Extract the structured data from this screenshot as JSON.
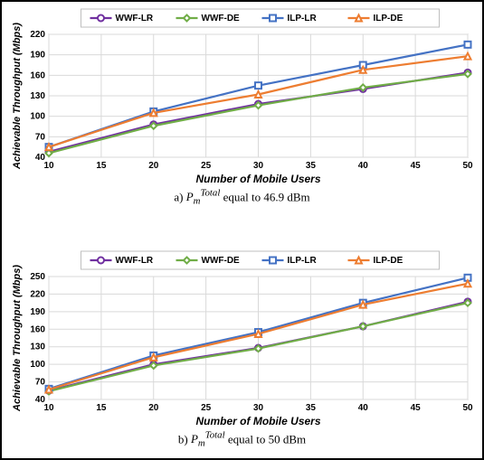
{
  "global": {
    "xlabel": "Number of Mobile Users",
    "ylabel": "Achievable Throughput (Mbps)",
    "xlim": [
      10,
      50
    ],
    "xtick_step": 5,
    "bg_plot": "#ffffff",
    "grid_color": "#d9d9d9",
    "axis_color": "#a6a6a6",
    "legend_bg": "#ffffff",
    "legend_border": "#bfbfbf",
    "xlabel_fontsize": 12,
    "ylabel_fontsize": 11,
    "ytick_fontsize": 10,
    "legend_fontsize": 10,
    "line_width": 2.2,
    "marker_size": 7
  },
  "series_meta": [
    {
      "name": "WWF-LR",
      "color": "#7030a0",
      "marker": "circle"
    },
    {
      "name": "WWF-DE",
      "color": "#70ad47",
      "marker": "diamond"
    },
    {
      "name": "ILP-LR",
      "color": "#4472c4",
      "marker": "square"
    },
    {
      "name": "ILP-DE",
      "color": "#ed7d31",
      "marker": "triangle"
    }
  ],
  "panels": [
    {
      "id": "panel-a",
      "ylim": [
        40,
        220
      ],
      "ytick_step": 30,
      "caption_html": "a) <i>P<sub>m</sub><sup>Total</sup></i> equal to 46.9 dBm",
      "series": [
        {
          "name": "WWF-LR",
          "x": [
            10,
            20,
            30,
            40,
            50
          ],
          "y": [
            48,
            88,
            118,
            140,
            164
          ]
        },
        {
          "name": "WWF-DE",
          "x": [
            10,
            20,
            30,
            40,
            50
          ],
          "y": [
            46,
            86,
            116,
            142,
            162
          ]
        },
        {
          "name": "ILP-LR",
          "x": [
            10,
            20,
            30,
            40,
            50
          ],
          "y": [
            55,
            107,
            145,
            175,
            205
          ]
        },
        {
          "name": "ILP-DE",
          "x": [
            10,
            20,
            30,
            40,
            50
          ],
          "y": [
            55,
            105,
            132,
            168,
            188
          ]
        }
      ]
    },
    {
      "id": "panel-b",
      "ylim": [
        40,
        250
      ],
      "ytick_step": 30,
      "caption_html": "b) <i>P<sub>m</sub><sup>Total</sup></i> equal to 50 dBm",
      "series": [
        {
          "name": "WWF-LR",
          "x": [
            10,
            20,
            30,
            40,
            50
          ],
          "y": [
            55,
            100,
            128,
            165,
            207
          ]
        },
        {
          "name": "WWF-DE",
          "x": [
            10,
            20,
            30,
            40,
            50
          ],
          "y": [
            54,
            98,
            127,
            165,
            205
          ]
        },
        {
          "name": "ILP-LR",
          "x": [
            10,
            20,
            30,
            40,
            50
          ],
          "y": [
            58,
            115,
            155,
            205,
            248
          ]
        },
        {
          "name": "ILP-DE",
          "x": [
            10,
            20,
            30,
            40,
            50
          ],
          "y": [
            57,
            112,
            152,
            202,
            238
          ]
        }
      ]
    }
  ]
}
